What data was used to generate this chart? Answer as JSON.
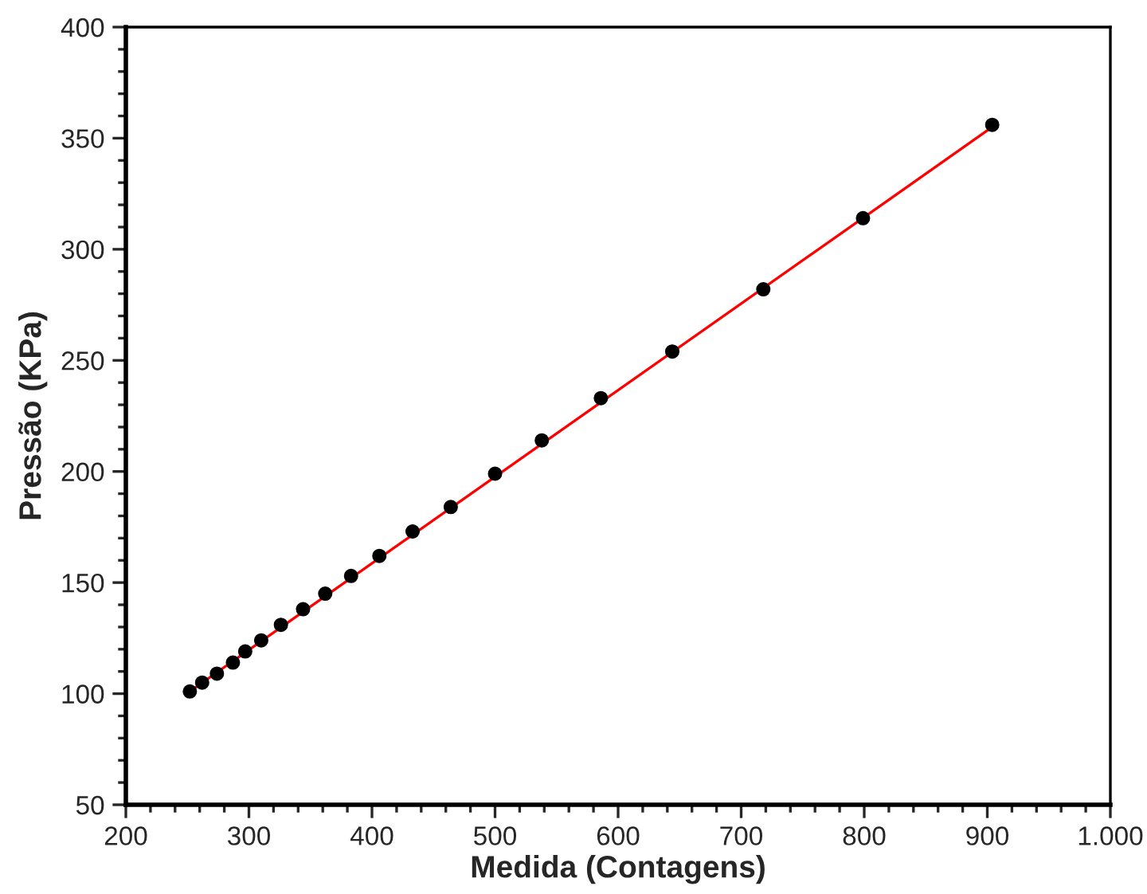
{
  "chart_data": {
    "type": "scatter",
    "xlabel": "Medida (Contagens)",
    "ylabel": "Pressão (KPa)",
    "xlim": [
      200,
      1000
    ],
    "ylim": [
      50,
      400
    ],
    "xticks": [
      200,
      300,
      400,
      500,
      600,
      700,
      800,
      900,
      {
        "value": 1000,
        "label": "1.000"
      }
    ],
    "yticks": [
      50,
      100,
      150,
      200,
      250,
      300,
      350,
      400
    ],
    "grid": false,
    "legend": false,
    "series": [
      {
        "marker": "circle",
        "color": "#000000",
        "x": [
          252,
          262,
          274,
          287,
          297,
          310,
          326,
          344,
          362,
          383,
          406,
          433,
          464,
          500,
          538,
          586,
          644,
          718,
          799,
          904
        ],
        "values": [
          101,
          105,
          109,
          114,
          119,
          124,
          131,
          138,
          145,
          153,
          162,
          173,
          184,
          199,
          214,
          233,
          254,
          282,
          314,
          356
        ]
      },
      {
        "type": "line",
        "marker": "none",
        "color": "#ff0000",
        "x": [
          252,
          904
        ],
        "values": [
          101,
          355
        ]
      }
    ]
  }
}
